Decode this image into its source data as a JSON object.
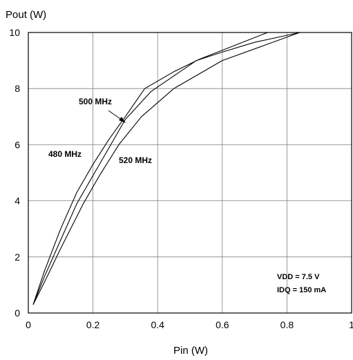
{
  "chart_data": {
    "type": "line",
    "ylabel": "Pout (W)",
    "xlabel": "Pin (W)",
    "xlim": [
      0,
      1
    ],
    "ylim": [
      0,
      10
    ],
    "x_ticks": [
      "0",
      "0.2",
      "0.4",
      "0.6",
      "0.8",
      "1"
    ],
    "x_tick_values": [
      0,
      0.2,
      0.4,
      0.6,
      0.8,
      1.0
    ],
    "y_ticks": [
      "0",
      "2",
      "4",
      "6",
      "8",
      "10"
    ],
    "y_tick_values": [
      0,
      2,
      4,
      6,
      8,
      10
    ],
    "grid": true,
    "series": [
      {
        "name": "480 MHz",
        "x": [
          0.015,
          0.05,
          0.1,
          0.15,
          0.2,
          0.25,
          0.3,
          0.36,
          0.45,
          0.53,
          0.63,
          0.74
        ],
        "y": [
          0.3,
          1.5,
          3.0,
          4.3,
          5.3,
          6.2,
          7.0,
          8.0,
          8.6,
          9.05,
          9.5,
          10.0
        ]
      },
      {
        "name": "500 MHz",
        "x": [
          0.015,
          0.05,
          0.1,
          0.15,
          0.2,
          0.25,
          0.3,
          0.38,
          0.45,
          0.52,
          0.6,
          0.7,
          0.84
        ],
        "y": [
          0.3,
          1.3,
          2.6,
          3.9,
          4.9,
          5.9,
          6.9,
          7.9,
          8.45,
          9.0,
          9.3,
          9.65,
          10.0
        ]
      },
      {
        "name": "520 MHz",
        "x": [
          0.015,
          0.05,
          0.1,
          0.17,
          0.22,
          0.28,
          0.35,
          0.45,
          0.6,
          0.72,
          0.84
        ],
        "y": [
          0.3,
          1.1,
          2.3,
          3.9,
          4.9,
          6.0,
          7.0,
          8.0,
          9.0,
          9.5,
          10.0
        ]
      }
    ],
    "annotations": [
      "VDD = 7.5 V",
      "IDQ = 150 mA"
    ]
  }
}
